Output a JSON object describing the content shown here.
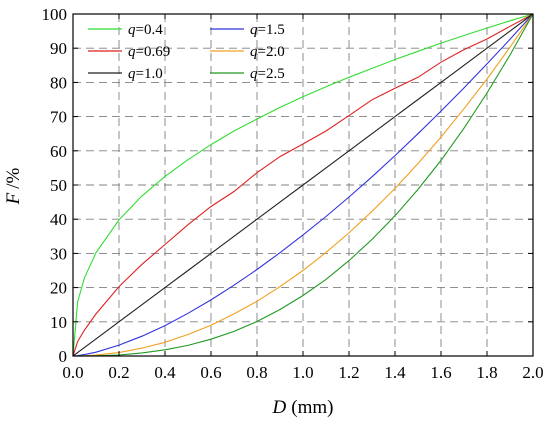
{
  "chart_data": {
    "type": "line",
    "xlabel_var": "D",
    "xlabel_unit": "(mm)",
    "ylabel_var": "F",
    "ylabel_unit": "/%",
    "xlim": [
      0,
      2.0
    ],
    "ylim": [
      0,
      100
    ],
    "x_ticks": [
      "0.0",
      "0.2",
      "0.4",
      "0.6",
      "0.8",
      "1.0",
      "1.2",
      "1.4",
      "1.6",
      "1.8",
      "2.0"
    ],
    "y_ticks": [
      "0",
      "10",
      "20",
      "30",
      "40",
      "50",
      "60",
      "70",
      "80",
      "90",
      "100"
    ],
    "grid": true,
    "legend_position": "top-left",
    "legend_var": "q",
    "x": [
      0,
      0.02,
      0.05,
      0.1,
      0.2,
      0.3,
      0.4,
      0.5,
      0.6,
      0.7,
      0.8,
      0.9,
      1.0,
      1.1,
      1.2,
      1.3,
      1.4,
      1.5,
      1.6,
      1.7,
      1.8,
      1.9,
      2.0
    ],
    "series": [
      {
        "name": "=0.4",
        "color": "#33dd33",
        "values": [
          0,
          15.8,
          22.9,
          30.2,
          39.8,
          46.8,
          52.5,
          57.4,
          61.8,
          65.8,
          69.3,
          72.7,
          75.8,
          78.7,
          81.5,
          84.1,
          86.7,
          89.1,
          91.5,
          93.7,
          95.9,
          98.0,
          100
        ]
      },
      {
        "name": "=1.5",
        "color": "#3333dd",
        "values": [
          0,
          0.1,
          0.4,
          1.1,
          3.2,
          5.8,
          8.9,
          12.5,
          16.4,
          20.7,
          25.3,
          30.2,
          35.4,
          40.8,
          46.5,
          52.4,
          58.6,
          65.0,
          71.6,
          78.4,
          85.4,
          92.6,
          100
        ]
      },
      {
        "name": "=0.69",
        "color": "#dd2222",
        "values": [
          0,
          4.2,
          7.6,
          12.3,
          20.3,
          26.8,
          32.6,
          38.4,
          43.7,
          48.1,
          53.6,
          58.3,
          62.0,
          65.8,
          70.3,
          74.9,
          78.3,
          81.5,
          85.9,
          89.6,
          92.7,
          96.4,
          100
        ]
      },
      {
        "name": "=2.0",
        "color": "#f0a020",
        "values": [
          0,
          0.01,
          0.06,
          0.25,
          1.0,
          2.3,
          4.0,
          6.3,
          9.0,
          12.3,
          16.0,
          20.3,
          25.0,
          30.3,
          36.0,
          42.3,
          49.0,
          56.3,
          64.0,
          72.3,
          81.0,
          90.3,
          100
        ]
      },
      {
        "name": "=1.0",
        "color": "#222222",
        "values": [
          0,
          1,
          2.5,
          5,
          10,
          15,
          20,
          25,
          30,
          35,
          40,
          45,
          50,
          55,
          60,
          65,
          70,
          75,
          80,
          85,
          90,
          95,
          100
        ]
      },
      {
        "name": "=2.5",
        "color": "#229922",
        "values": [
          0,
          0.0,
          0.01,
          0.06,
          0.3,
          0.9,
          1.8,
          3.1,
          4.9,
          7.2,
          10.1,
          13.6,
          17.7,
          22.4,
          27.9,
          34.1,
          41.0,
          48.7,
          57.2,
          66.6,
          76.9,
          88.0,
          100
        ]
      }
    ]
  }
}
